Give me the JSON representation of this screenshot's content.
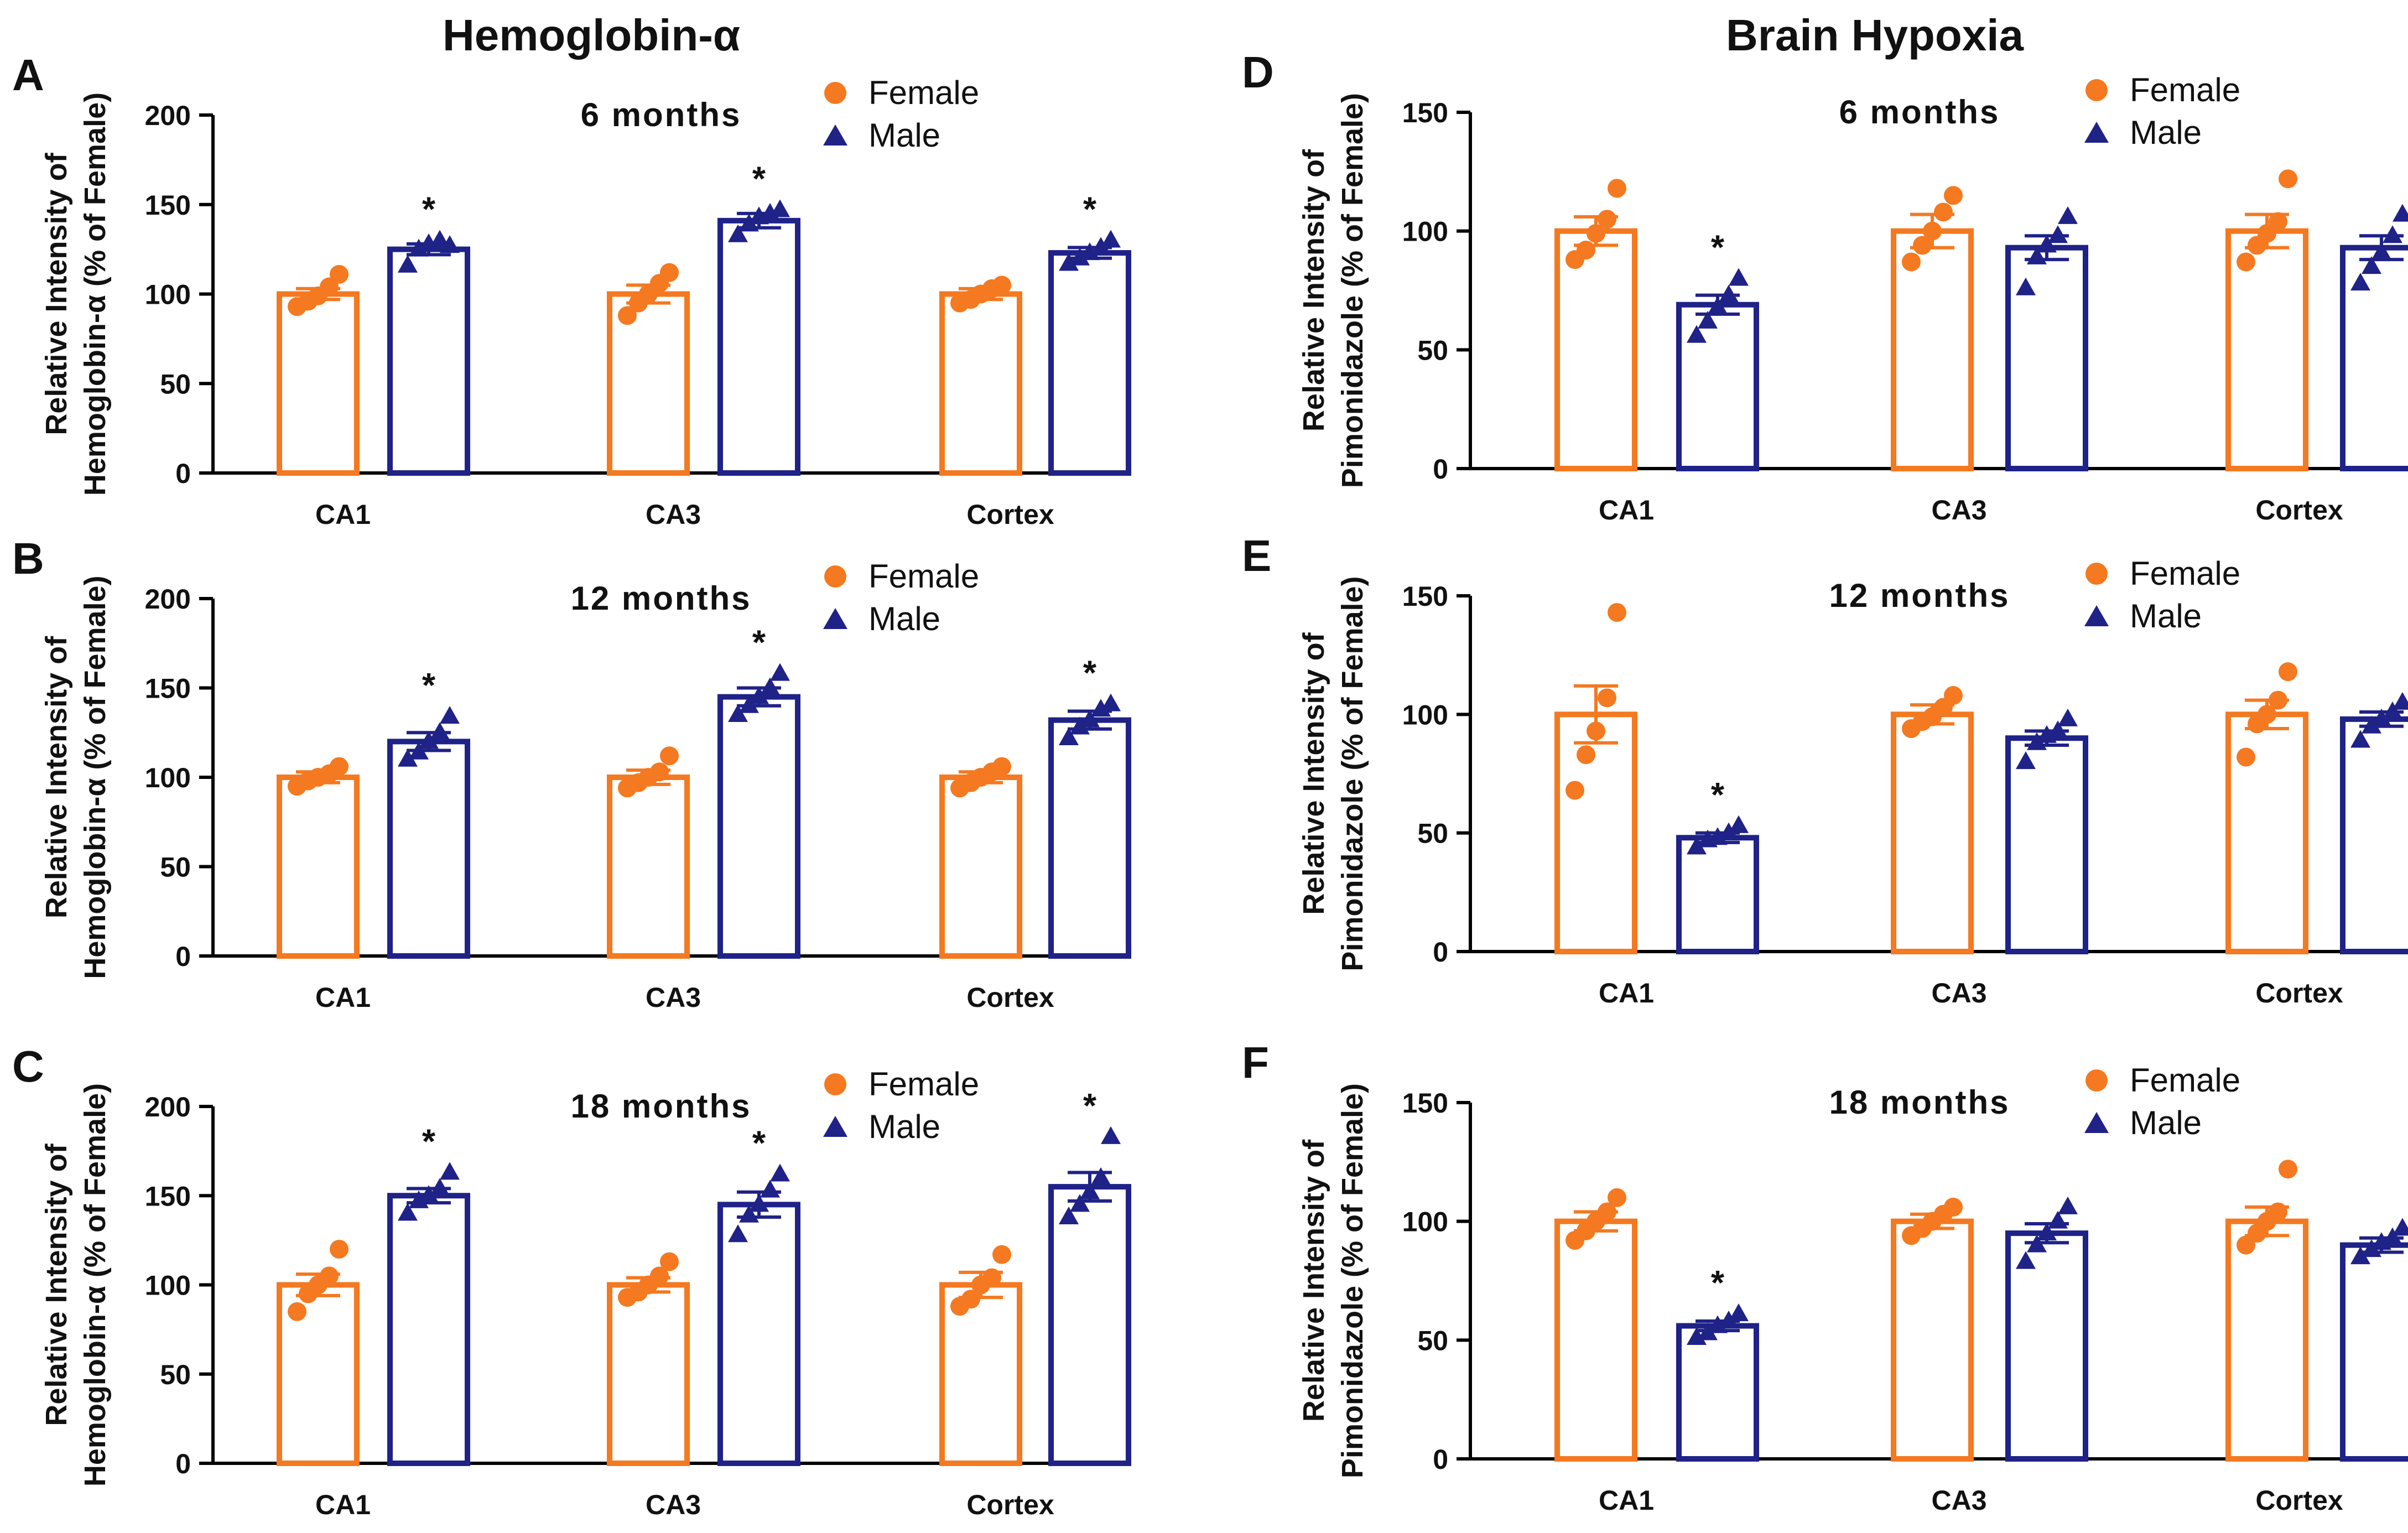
{
  "figure": {
    "left_title": "Hemoglobin-α",
    "right_title": "Brain Hypoxia"
  },
  "colors": {
    "female": "#F47920",
    "male": "#1F2287",
    "axis": "#000000",
    "text": "#111111"
  },
  "chart_data": [
    {
      "id": "A",
      "panel_label": "A",
      "type": "bar",
      "title": "6 months",
      "ylabel_line1": "Relative Intensity of",
      "ylabel_line2": "Hemoglobin-α (% of Female)",
      "ylim": [
        0,
        200
      ],
      "yticks": [
        0,
        50,
        100,
        150,
        200
      ],
      "categories": [
        "CA1",
        "CA3",
        "Cortex"
      ],
      "legend": [
        "Female",
        "Male"
      ],
      "series": [
        {
          "name": "Female",
          "marker": "circle",
          "values": [
            100,
            100,
            100
          ],
          "sem": [
            3,
            5,
            3
          ],
          "points": [
            [
              93,
              96,
              99,
              104,
              111
            ],
            [
              88,
              95,
              100,
              106,
              112
            ],
            [
              95,
              97,
              100,
              103,
              105
            ]
          ]
        },
        {
          "name": "Male",
          "marker": "triangle",
          "values": [
            125,
            141,
            123
          ],
          "sem": [
            3,
            4,
            3
          ],
          "points": [
            [
              116,
              125,
              128,
              130,
              127
            ],
            [
              133,
              139,
              143,
              145,
              147
            ],
            [
              117,
              120,
              123,
              126,
              130
            ]
          ]
        }
      ],
      "significance": [
        false,
        true,
        false,
        true,
        false,
        true
      ]
    },
    {
      "id": "B",
      "panel_label": "B",
      "type": "bar",
      "title": "12 months",
      "ylabel_line1": "Relative Intensity of",
      "ylabel_line2": "Hemoglobin-α (% of Female)",
      "ylim": [
        0,
        200
      ],
      "yticks": [
        0,
        50,
        100,
        150,
        200
      ],
      "categories": [
        "CA1",
        "CA3",
        "Cortex"
      ],
      "legend": [
        "Female",
        "Male"
      ],
      "series": [
        {
          "name": "Female",
          "marker": "circle",
          "values": [
            100,
            100,
            100
          ],
          "sem": [
            3,
            4,
            3
          ],
          "points": [
            [
              95,
              98,
              100,
              102,
              106
            ],
            [
              94,
              97,
              100,
              103,
              112
            ],
            [
              94,
              97,
              100,
              103,
              106
            ]
          ]
        },
        {
          "name": "Male",
          "marker": "triangle",
          "values": [
            120,
            145,
            132
          ],
          "sem": [
            5,
            5,
            5
          ],
          "points": [
            [
              110,
              114,
              120,
              125,
              134
            ],
            [
              135,
              140,
              145,
              150,
              158
            ],
            [
              122,
              128,
              132,
              138,
              141
            ]
          ]
        }
      ],
      "significance": [
        false,
        true,
        false,
        true,
        false,
        true
      ]
    },
    {
      "id": "C",
      "panel_label": "C",
      "type": "bar",
      "title": "18 months",
      "ylabel_line1": "Relative Intensity of",
      "ylabel_line2": "Hemoglobin-α (% of Female)",
      "ylim": [
        0,
        200
      ],
      "yticks": [
        0,
        50,
        100,
        150,
        200
      ],
      "categories": [
        "CA1",
        "CA3",
        "Cortex"
      ],
      "legend": [
        "Female",
        "Male"
      ],
      "series": [
        {
          "name": "Female",
          "marker": "circle",
          "values": [
            100,
            100,
            100
          ],
          "sem": [
            6,
            4,
            7
          ],
          "points": [
            [
              85,
              95,
              100,
              105,
              120
            ],
            [
              93,
              96,
              100,
              105,
              113
            ],
            [
              88,
              92,
              100,
              104,
              117
            ]
          ]
        },
        {
          "name": "Male",
          "marker": "triangle",
          "values": [
            150,
            145,
            155
          ],
          "sem": [
            4,
            7,
            8
          ],
          "points": [
            [
              140,
              147,
              150,
              154,
              163
            ],
            [
              128,
              139,
              145,
              153,
              162
            ],
            [
              138,
              145,
              152,
              160,
              183
            ]
          ]
        }
      ],
      "significance": [
        false,
        true,
        false,
        true,
        false,
        true
      ]
    },
    {
      "id": "D",
      "panel_label": "D",
      "type": "bar",
      "title": "6 months",
      "ylabel_line1": "Relative Intensity of",
      "ylabel_line2": "Pimonidazole (% of Female)",
      "ylim": [
        0,
        150
      ],
      "yticks": [
        0,
        50,
        100,
        150
      ],
      "categories": [
        "CA1",
        "CA3",
        "Cortex"
      ],
      "legend": [
        "Female",
        "Male"
      ],
      "series": [
        {
          "name": "Female",
          "marker": "circle",
          "values": [
            100,
            100,
            100
          ],
          "sem": [
            6,
            7,
            7
          ],
          "points": [
            [
              88,
              92,
              99,
              105,
              118
            ],
            [
              87,
              94,
              100,
              108,
              115
            ],
            [
              87,
              94,
              99,
              104,
              122
            ]
          ]
        },
        {
          "name": "Male",
          "marker": "triangle",
          "values": [
            69,
            93,
            93
          ],
          "sem": [
            4,
            5,
            5
          ],
          "points": [
            [
              56,
              62,
              68,
              73,
              80
            ],
            [
              76,
              89,
              94,
              98,
              106
            ],
            [
              78,
              85,
              91,
              98,
              107
            ]
          ]
        }
      ],
      "significance": [
        false,
        true,
        false,
        false,
        false,
        false
      ]
    },
    {
      "id": "E",
      "panel_label": "E",
      "type": "bar",
      "title": "12 months",
      "ylabel_line1": "Relative Intensity of",
      "ylabel_line2": "Pimonidazole (% of Female)",
      "ylim": [
        0,
        150
      ],
      "yticks": [
        0,
        50,
        100,
        150
      ],
      "categories": [
        "CA1",
        "CA3",
        "Cortex"
      ],
      "legend": [
        "Female",
        "Male"
      ],
      "series": [
        {
          "name": "Female",
          "marker": "circle",
          "values": [
            100,
            100,
            100
          ],
          "sem": [
            12,
            4,
            6
          ],
          "points": [
            [
              68,
              83,
              93,
              107,
              143
            ],
            [
              94,
              97,
              99,
              103,
              108
            ],
            [
              82,
              96,
              100,
              106,
              118
            ]
          ]
        },
        {
          "name": "Male",
          "marker": "triangle",
          "values": [
            48,
            90,
            98
          ],
          "sem": [
            2,
            3,
            3
          ],
          "points": [
            [
              44,
              47,
              48,
              50,
              53
            ],
            [
              80,
              88,
              91,
              93,
              98
            ],
            [
              89,
              95,
              98,
              101,
              105
            ]
          ]
        }
      ],
      "significance": [
        false,
        true,
        false,
        false,
        false,
        false
      ]
    },
    {
      "id": "F",
      "panel_label": "F",
      "type": "bar",
      "title": "18 months",
      "ylabel_line1": "Relative Intensity of",
      "ylabel_line2": "Pimonidazole (% of Female)",
      "ylim": [
        0,
        150
      ],
      "yticks": [
        0,
        50,
        100,
        150
      ],
      "categories": [
        "CA1",
        "CA3",
        "Cortex"
      ],
      "legend": [
        "Female",
        "Male"
      ],
      "series": [
        {
          "name": "Female",
          "marker": "circle",
          "values": [
            100,
            100,
            100
          ],
          "sem": [
            4,
            3,
            6
          ],
          "points": [
            [
              92,
              96,
              100,
              104,
              110
            ],
            [
              94,
              97,
              100,
              103,
              106
            ],
            [
              90,
              95,
              100,
              104,
              122
            ]
          ]
        },
        {
          "name": "Male",
          "marker": "triangle",
          "values": [
            56,
            95,
            90
          ],
          "sem": [
            2,
            4,
            3
          ],
          "points": [
            [
              51,
              53,
              56,
              58,
              61
            ],
            [
              83,
              90,
              95,
              100,
              106
            ],
            [
              85,
              88,
              91,
              93,
              97
            ]
          ]
        }
      ],
      "significance": [
        false,
        true,
        false,
        false,
        false,
        false
      ]
    }
  ]
}
